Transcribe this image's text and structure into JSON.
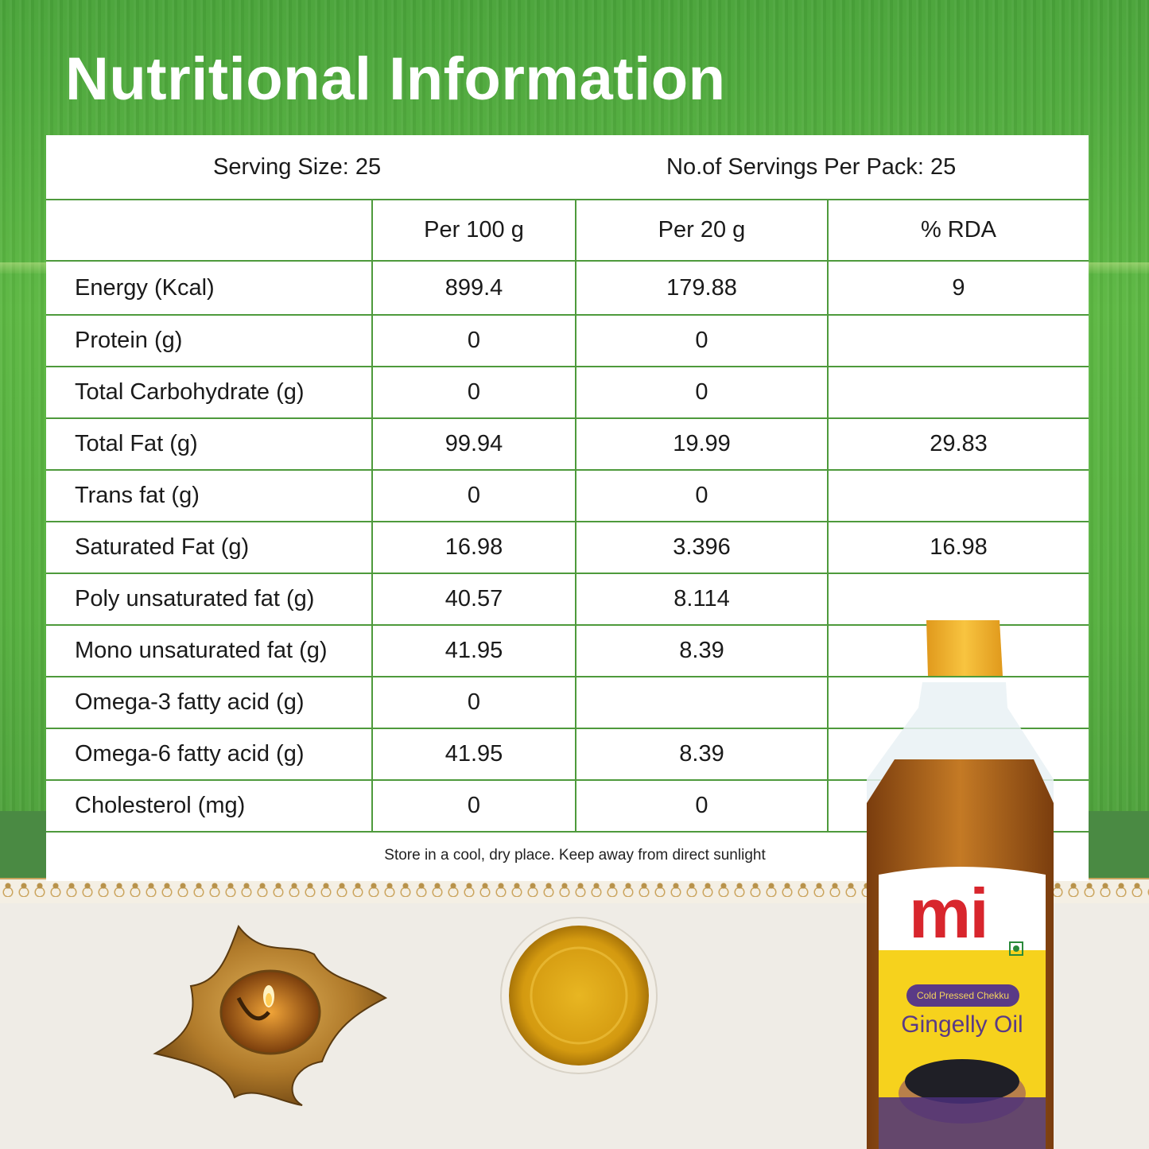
{
  "title": "Nutritional Information",
  "serving": {
    "size": "Serving Size: 25",
    "servings_per_pack": "No.of Servings Per Pack: 25"
  },
  "columns": [
    "",
    "Per 100 g",
    "Per 20 g",
    "% RDA"
  ],
  "rows": [
    {
      "label": "Energy (Kcal)",
      "per100": "899.4",
      "per20": "179.88",
      "rda": "9"
    },
    {
      "label": "Protein (g)",
      "per100": "0",
      "per20": "0",
      "rda": ""
    },
    {
      "label": "Total Carbohydrate (g)",
      "per100": "0",
      "per20": "0",
      "rda": ""
    },
    {
      "label": "Total Fat (g)",
      "per100": "99.94",
      "per20": "19.99",
      "rda": "29.83"
    },
    {
      "label": "Trans fat (g)",
      "per100": "0",
      "per20": "0",
      "rda": ""
    },
    {
      "label": "Saturated Fat (g)",
      "per100": "16.98",
      "per20": "3.396",
      "rda": "16.98"
    },
    {
      "label": "Poly unsaturated fat (g)",
      "per100": "40.57",
      "per20": "8.114",
      "rda": ""
    },
    {
      "label": "Mono unsaturated fat (g)",
      "per100": "41.95",
      "per20": "8.39",
      "rda": ""
    },
    {
      "label": "Omega-3 fatty acid (g)",
      "per100": "0",
      "per20": "",
      "rda": ""
    },
    {
      "label": "Omega-6 fatty acid (g)",
      "per100": "41.95",
      "per20": "8.39",
      "rda": ""
    },
    {
      "label": "Cholesterol (mg)",
      "per100": "0",
      "per20": "0",
      "rda": ""
    }
  ],
  "storage_note": "Store in a cool, dry place. Keep away from direct sunlight",
  "product": {
    "brand": "mi",
    "tagline": "Cold Pressed Chekku",
    "name": "Gingelly Oil"
  },
  "colors": {
    "background_green": "#56b03f",
    "table_rule": "#4e9a3c",
    "brand_red": "#d8262d",
    "label_purple": "#5a3a86",
    "cap_yellow": "#f2b431"
  }
}
